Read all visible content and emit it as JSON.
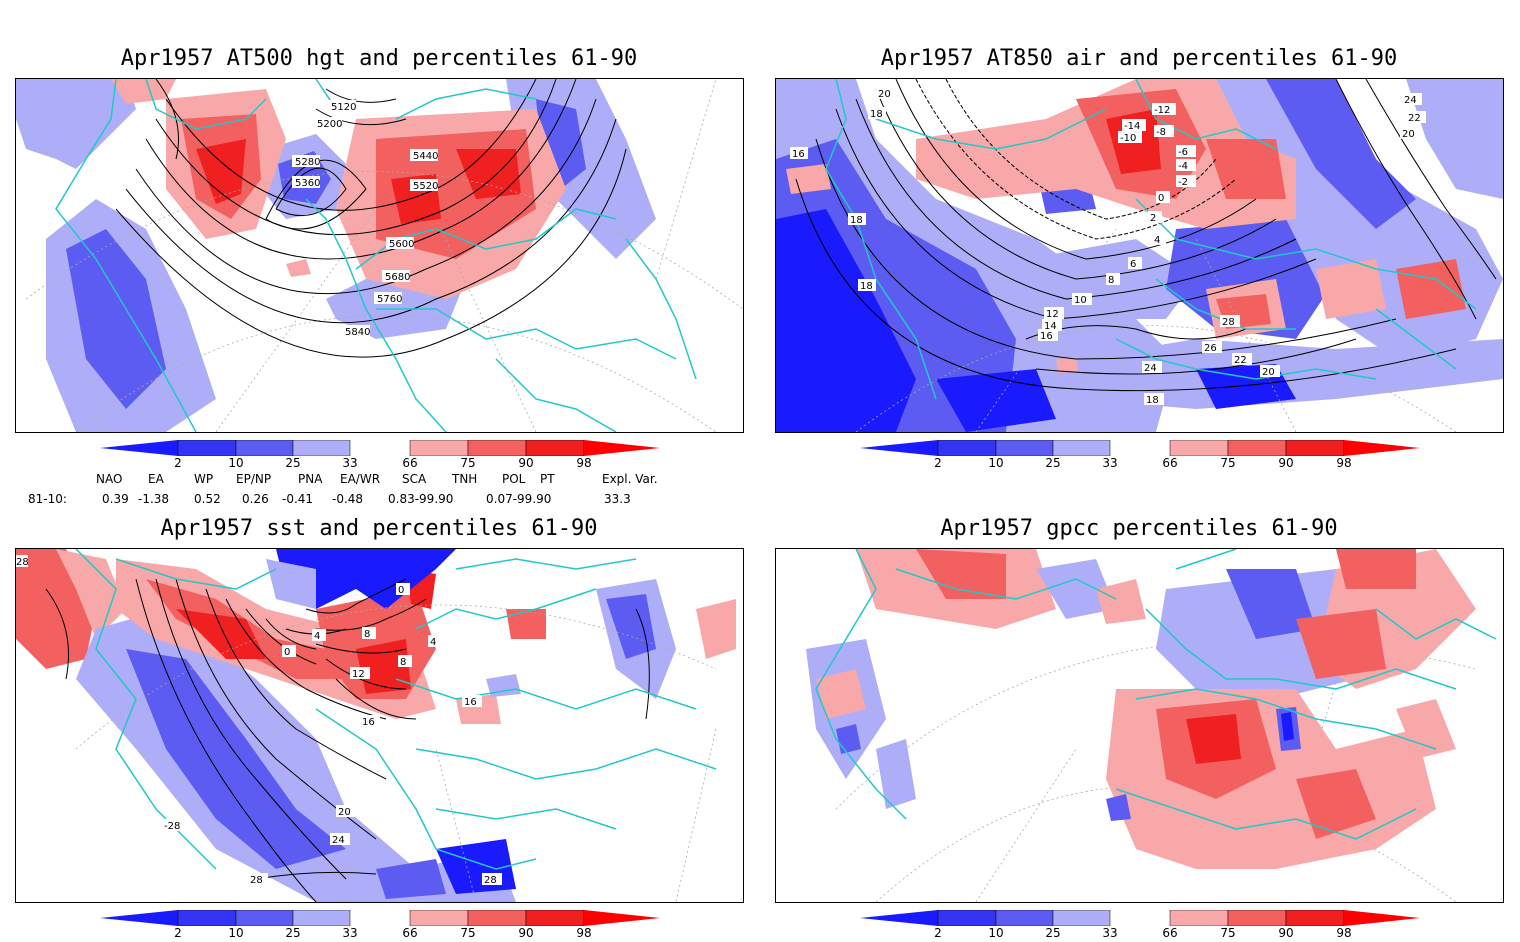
{
  "colors": {
    "blue_dark": "#1a1aff",
    "blue_mid": "#5c5cf2",
    "blue_light": "#aeaef8",
    "red_light": "#f8a8a8",
    "red_mid": "#f26060",
    "red_dark": "#f02020",
    "coast": "#20c8c8",
    "contour": "#000000"
  },
  "legend": {
    "ticks": [
      "2",
      "10",
      "25",
      "33",
      "66",
      "75",
      "90",
      "98"
    ]
  },
  "panels": [
    {
      "id": "hgt500",
      "title": "Apr1957 AT500 hgt and percentiles 61-90",
      "contour_labels": [
        "5120",
        "5200",
        "5280",
        "5360",
        "5440",
        "5520",
        "5600",
        "5680",
        "5760",
        "5840"
      ]
    },
    {
      "id": "air850",
      "title": "Apr1957 AT850 air and percentiles 61-90",
      "contour_labels": [
        "20",
        "18",
        "16",
        "18",
        "18",
        "-12",
        "-14",
        "-10",
        "-8",
        "-6",
        "-4",
        "-2",
        "0",
        "2",
        "4",
        "6",
        "8",
        "10",
        "12",
        "14",
        "16",
        "24",
        "22",
        "20",
        "26",
        "28",
        "22",
        "20",
        "24",
        "18"
      ]
    },
    {
      "id": "sst",
      "title": "Apr1957 sst and percentiles 61-90",
      "contour_labels": [
        "28",
        "0",
        "4",
        "8",
        "12",
        "16",
        "20",
        "24",
        "28",
        "28",
        "-28",
        "16",
        "4",
        "0",
        "8"
      ]
    },
    {
      "id": "gpcc",
      "title": "Apr1957 gpcc percentiles 61-90",
      "contour_labels": []
    }
  ],
  "indices": {
    "headers": [
      "NAO",
      "EA",
      "WP",
      "EP/NP",
      "PNA",
      "EA/WR",
      "SCA",
      "TNH",
      "POL",
      "PT",
      "Expl. Var."
    ],
    "row_label": "81-10:",
    "values": [
      "0.39",
      "-1.38",
      "0.52",
      "0.26",
      "-0.41",
      "-0.48",
      "0.83-99.90",
      "0.07-99.90",
      "33.3"
    ]
  }
}
